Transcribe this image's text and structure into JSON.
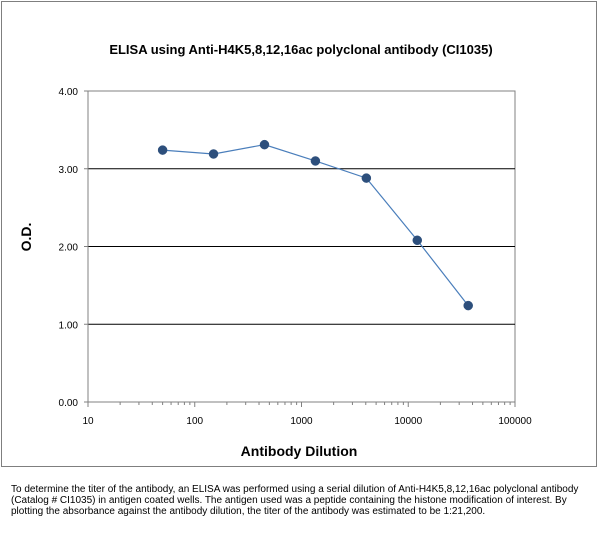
{
  "chart_data": {
    "type": "line",
    "title": "ELISA using Anti-H4K5,8,12,16ac polyclonal antibody (CI1035)",
    "xlabel": "Antibody Dilution",
    "ylabel": "O.D.",
    "x_scale": "log",
    "xlim": [
      10,
      100000
    ],
    "ylim": [
      0,
      4
    ],
    "x_ticks": [
      10,
      100,
      1000,
      10000,
      100000
    ],
    "x_tick_labels": [
      "10",
      "100",
      "1000",
      "10000",
      "100000"
    ],
    "y_ticks": [
      0,
      1,
      2,
      3,
      4
    ],
    "y_tick_labels": [
      "0.00",
      "1.00",
      "2.00",
      "3.00",
      "4.00"
    ],
    "grid": "horizontal major gridlines at 1.00, 2.00, 3.00",
    "legend": "none",
    "series": [
      {
        "x": [
          50,
          150,
          450,
          1350,
          4050,
          12150,
          36450
        ],
        "y": [
          3.24,
          3.19,
          3.31,
          3.1,
          2.88,
          2.08,
          1.24
        ],
        "color": "#4f81bd",
        "line_color": "#4a7ebb",
        "marker_color": "#2d4f7c"
      }
    ]
  },
  "caption": "To determine the titer of the antibody, an ELISA was performed using a serial dilution of Anti-H4K5,8,12,16ac polyclonal antibody (Catalog # CI1035) in antigen coated wells. The antigen used was a peptide containing the histone modification of interest. By plotting the absorbance against the antibody dilution, the titer of the antibody was estimated to be 1:21,200."
}
